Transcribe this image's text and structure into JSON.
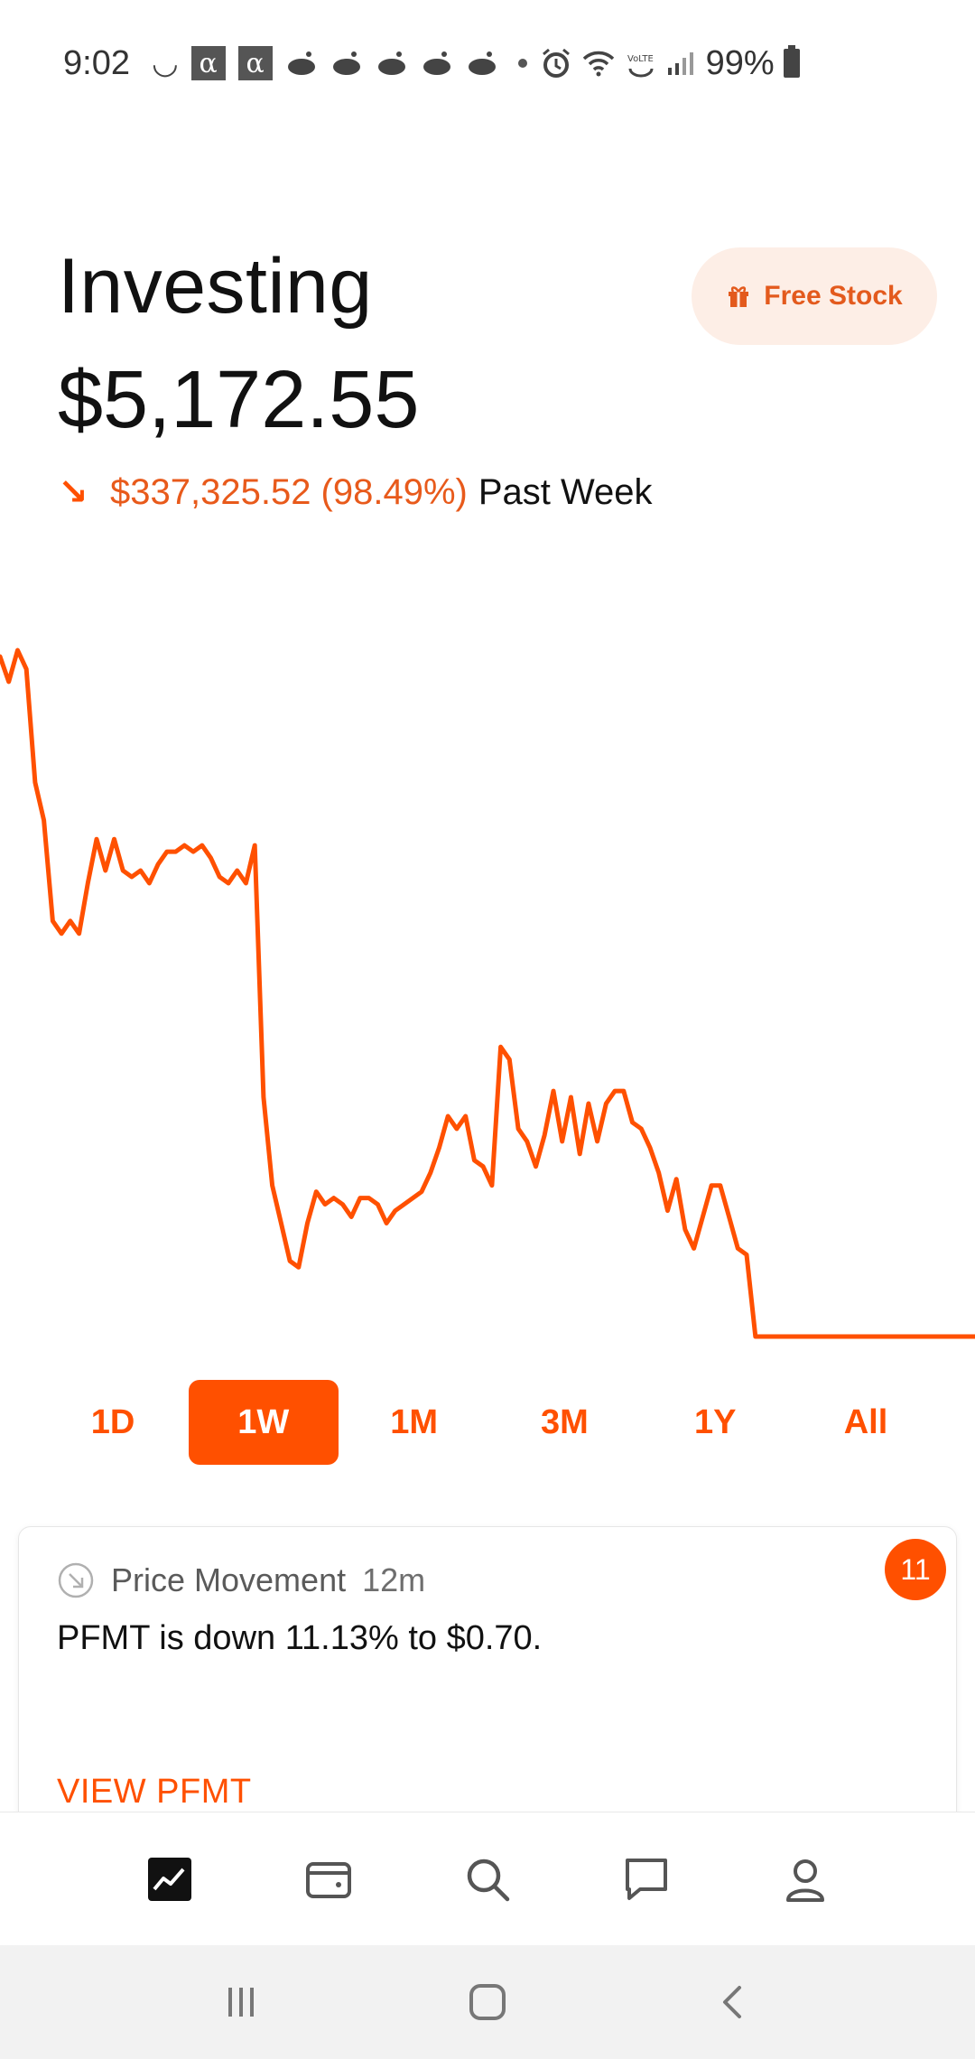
{
  "status_bar": {
    "time": "9:02",
    "battery": "99%",
    "icons": [
      "moon-icon",
      "alpha-icon",
      "alpha-icon",
      "reddit-icon",
      "reddit-icon",
      "reddit-icon",
      "reddit-icon",
      "reddit-icon",
      "dot-icon",
      "alarm-icon",
      "wifi-icon",
      "volte-icon",
      "signal-icon",
      "battery-icon"
    ]
  },
  "header": {
    "title": "Investing",
    "balance": "$5,172.55",
    "change_value": "$337,325.52 (98.49%)",
    "change_period": "Past Week",
    "change_direction": "down",
    "free_stock_label": "Free Stock"
  },
  "chart_data": {
    "type": "line",
    "color": "#ff5000",
    "x": [
      0,
      1,
      2,
      3,
      4,
      5,
      6,
      7,
      8,
      9,
      10,
      11,
      12,
      13,
      14,
      15,
      16,
      17,
      18,
      19,
      20,
      21,
      22,
      23,
      24,
      25,
      26,
      27,
      28,
      29,
      30,
      31,
      32,
      33,
      34,
      35,
      36,
      37,
      38,
      39,
      40,
      41,
      42,
      43,
      44,
      45,
      46,
      47,
      48,
      49,
      50,
      51,
      52,
      53,
      54,
      55,
      56,
      57,
      58,
      59,
      60,
      61,
      62,
      63,
      64,
      65,
      66,
      67,
      68,
      69,
      70,
      71,
      72,
      73,
      74,
      75,
      76,
      77,
      78,
      79,
      80,
      81,
      82,
      83,
      84,
      85,
      86,
      87,
      88,
      89,
      90,
      91,
      92,
      93,
      94,
      95,
      96,
      97,
      98,
      99,
      100,
      101,
      102,
      103,
      104,
      105,
      106,
      107,
      108,
      109,
      110,
      111
    ],
    "values": [
      5.4,
      5.2,
      5.45,
      5.3,
      4.4,
      4.1,
      3.3,
      3.2,
      3.3,
      3.2,
      3.6,
      3.95,
      3.7,
      3.95,
      3.7,
      3.65,
      3.7,
      3.6,
      3.75,
      3.85,
      3.85,
      3.9,
      3.85,
      3.9,
      3.8,
      3.65,
      3.6,
      3.7,
      3.6,
      3.9,
      1.9,
      1.2,
      0.9,
      0.6,
      0.55,
      0.9,
      1.15,
      1.05,
      1.1,
      1.05,
      0.95,
      1.1,
      1.1,
      1.05,
      0.9,
      1.0,
      1.05,
      1.1,
      1.15,
      1.3,
      1.5,
      1.75,
      1.65,
      1.75,
      1.4,
      1.35,
      1.2,
      2.3,
      2.2,
      1.65,
      1.55,
      1.35,
      1.6,
      1.95,
      1.55,
      1.9,
      1.45,
      1.85,
      1.55,
      1.85,
      1.95,
      1.95,
      1.7,
      1.65,
      1.5,
      1.3,
      1.0,
      1.25,
      0.85,
      0.7,
      0.95,
      1.2,
      1.2,
      0.95,
      0.7,
      0.65,
      0.0,
      0.0,
      0.0,
      0.0,
      0.0,
      0.0,
      0.0,
      0.0,
      0.0,
      0.0,
      0.0,
      0.0,
      0.0,
      0.0,
      0.0,
      0.0,
      0.0,
      0.0,
      0.0,
      0.0,
      0.0,
      0.0,
      0.0,
      0.0,
      0.0,
      0.0
    ],
    "grid": false,
    "legend": "none"
  },
  "range_tabs": [
    {
      "label": "1D",
      "active": false
    },
    {
      "label": "1W",
      "active": true
    },
    {
      "label": "1M",
      "active": false
    },
    {
      "label": "3M",
      "active": false
    },
    {
      "label": "1Y",
      "active": false
    },
    {
      "label": "All",
      "active": false
    }
  ],
  "notification": {
    "type": "Price Movement",
    "time": "12m",
    "message": "PFMT is down 11.13% to $0.70.",
    "link": "VIEW PFMT",
    "badge_count": "11",
    "icon": "arrow-down-right-circle-icon"
  },
  "bottom_nav": [
    {
      "name": "chart-icon",
      "active": true
    },
    {
      "name": "wallet-icon",
      "active": false
    },
    {
      "name": "search-icon",
      "active": false
    },
    {
      "name": "message-icon",
      "active": false
    },
    {
      "name": "profile-icon",
      "active": false
    }
  ],
  "system_nav": [
    "recents-icon",
    "home-icon",
    "back-icon"
  ]
}
